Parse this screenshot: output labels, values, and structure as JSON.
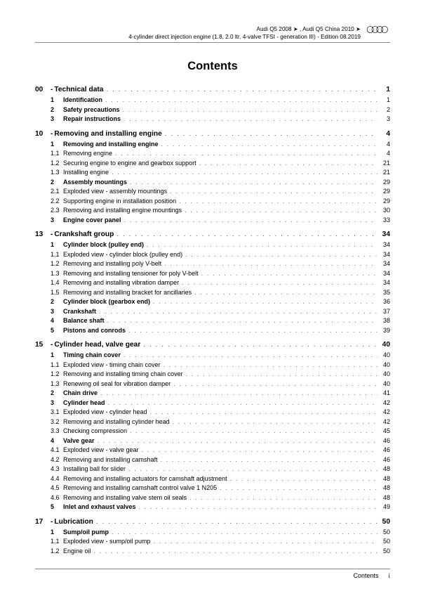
{
  "header": {
    "line1": "Audi Q5 2008 ➤ , Audi Q5 China 2010 ➤",
    "line2": "4-cylinder direct injection engine (1.8, 2.0 ltr. 4-valve TFSI - generation III) - Edition 08.2019"
  },
  "title": "Contents",
  "sections": [
    {
      "num": "00",
      "label": "Technical data",
      "page": "1",
      "entries": [
        {
          "num": "1",
          "label": "Identification",
          "page": "1",
          "bold": true
        },
        {
          "num": "2",
          "label": "Safety precautions",
          "page": "2",
          "bold": true
        },
        {
          "num": "3",
          "label": "Repair instructions",
          "page": "3",
          "bold": true
        }
      ]
    },
    {
      "num": "10",
      "label": "Removing and installing engine",
      "page": "4",
      "entries": [
        {
          "num": "1",
          "label": "Removing and installing engine",
          "page": "4",
          "bold": true
        },
        {
          "num": "1.1",
          "label": "Removing engine",
          "page": "4"
        },
        {
          "num": "1.2",
          "label": "Securing engine to engine and gearbox support",
          "page": "21"
        },
        {
          "num": "1.3",
          "label": "Installing engine",
          "page": "21"
        },
        {
          "num": "2",
          "label": "Assembly mountings",
          "page": "29",
          "bold": true
        },
        {
          "num": "2.1",
          "label": "Exploded view - assembly mountings",
          "page": "29"
        },
        {
          "num": "2.2",
          "label": "Supporting engine in installation position",
          "page": "29"
        },
        {
          "num": "2.3",
          "label": "Removing and installing engine mountings",
          "page": "30"
        },
        {
          "num": "3",
          "label": "Engine cover panel",
          "page": "33",
          "bold": true
        }
      ]
    },
    {
      "num": "13",
      "label": "Crankshaft group",
      "page": "34",
      "entries": [
        {
          "num": "1",
          "label": "Cylinder block (pulley end)",
          "page": "34",
          "bold": true
        },
        {
          "num": "1.1",
          "label": "Exploded view - cylinder block (pulley end)",
          "page": "34"
        },
        {
          "num": "1.2",
          "label": "Removing and installing poly V-belt",
          "page": "34"
        },
        {
          "num": "1.3",
          "label": "Removing and installing tensioner for poly V-belt",
          "page": "34"
        },
        {
          "num": "1.4",
          "label": "Removing and installing vibration damper",
          "page": "34"
        },
        {
          "num": "1.5",
          "label": "Removing and installing bracket for ancillaries",
          "page": "35"
        },
        {
          "num": "2",
          "label": "Cylinder block (gearbox end)",
          "page": "36",
          "bold": true
        },
        {
          "num": "3",
          "label": "Crankshaft",
          "page": "37",
          "bold": true
        },
        {
          "num": "4",
          "label": "Balance shaft",
          "page": "38",
          "bold": true
        },
        {
          "num": "5",
          "label": "Pistons and conrods",
          "page": "39",
          "bold": true
        }
      ]
    },
    {
      "num": "15",
      "label": "Cylinder head, valve gear",
      "page": "40",
      "entries": [
        {
          "num": "1",
          "label": "Timing chain cover",
          "page": "40",
          "bold": true
        },
        {
          "num": "1.1",
          "label": "Exploded view - timing chain cover",
          "page": "40"
        },
        {
          "num": "1.2",
          "label": "Removing and installing timing chain cover",
          "page": "40"
        },
        {
          "num": "1.3",
          "label": "Renewing oil seal for vibration damper",
          "page": "40"
        },
        {
          "num": "2",
          "label": "Chain drive",
          "page": "41",
          "bold": true
        },
        {
          "num": "3",
          "label": "Cylinder head",
          "page": "42",
          "bold": true
        },
        {
          "num": "3.1",
          "label": "Exploded view - cylinder head",
          "page": "42"
        },
        {
          "num": "3.2",
          "label": "Removing and installing cylinder head",
          "page": "42"
        },
        {
          "num": "3.3",
          "label": "Checking compression",
          "page": "45"
        },
        {
          "num": "4",
          "label": "Valve gear",
          "page": "46",
          "bold": true
        },
        {
          "num": "4.1",
          "label": "Exploded view - valve gear",
          "page": "46"
        },
        {
          "num": "4.2",
          "label": "Removing and installing camshaft",
          "page": "46"
        },
        {
          "num": "4.3",
          "label": "Installing ball for slider",
          "page": "48"
        },
        {
          "num": "4.4",
          "label": "Removing and installing actuators for camshaft adjustment",
          "page": "48"
        },
        {
          "num": "4.5",
          "label": "Removing and installing camshaft control valve 1 N205",
          "page": "48"
        },
        {
          "num": "4.6",
          "label": "Removing and installing valve stem oil seals",
          "page": "48"
        },
        {
          "num": "5",
          "label": "Inlet and exhaust valves",
          "page": "49",
          "bold": true
        }
      ]
    },
    {
      "num": "17",
      "label": "Lubrication",
      "page": "50",
      "entries": [
        {
          "num": "1",
          "label": "Sump/oil pump",
          "page": "50",
          "bold": true
        },
        {
          "num": "1.1",
          "label": "Exploded view - sump/oil pump",
          "page": "50"
        },
        {
          "num": "1.2",
          "label": "Engine oil",
          "page": "50"
        }
      ]
    }
  ],
  "footer": {
    "label": "Contents",
    "page": "i"
  }
}
